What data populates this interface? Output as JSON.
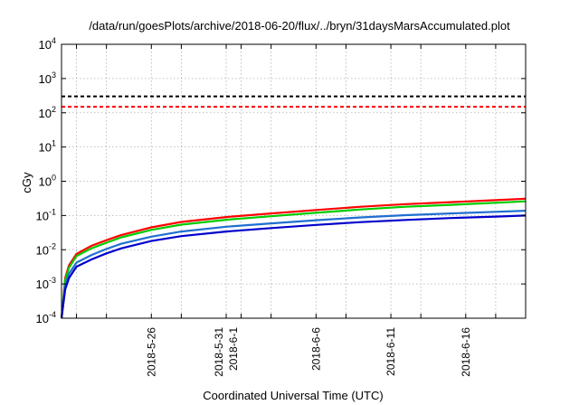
{
  "chart_data": {
    "type": "line",
    "title": "/data/run/goesPlots/archive/2018-06-20/flux/../bryn/31daysMarsAccumulated.plot",
    "xlabel": "Coordinated Universal Time (UTC)",
    "ylabel": "cGy",
    "yscale": "log",
    "ylim": [
      0.0001,
      10000
    ],
    "xlim": [
      "2018-05-20T00:00",
      "2018-06-20T00:00"
    ],
    "grid": true,
    "legend": "none",
    "y_ticks": [
      {
        "value": 0.0001,
        "base": "10",
        "exp": "-4"
      },
      {
        "value": 0.001,
        "base": "10",
        "exp": "-3"
      },
      {
        "value": 0.01,
        "base": "10",
        "exp": "-2"
      },
      {
        "value": 0.1,
        "base": "10",
        "exp": "-1"
      },
      {
        "value": 1,
        "base": "10",
        "exp": "0"
      },
      {
        "value": 10,
        "base": "10",
        "exp": "1"
      },
      {
        "value": 100,
        "base": "10",
        "exp": "2"
      },
      {
        "value": 1000,
        "base": "10",
        "exp": "3"
      },
      {
        "value": 10000,
        "base": "10",
        "exp": "4"
      }
    ],
    "x_ticks": [
      {
        "value": "2018-05-26",
        "lines": [
          "2018-5-26"
        ]
      },
      {
        "value": "2018-05-31",
        "lines": [
          "2018-5-31",
          "2018-6-1"
        ]
      },
      {
        "value": "2018-06-06",
        "lines": [
          "2018-6-6"
        ]
      },
      {
        "value": "2018-06-11",
        "lines": [
          "2018-6-11"
        ]
      },
      {
        "value": "2018-06-16",
        "lines": [
          "2018-6-16"
        ]
      }
    ],
    "x_grid": [
      "2018-05-21",
      "2018-05-23",
      "2018-05-26",
      "2018-05-28",
      "2018-05-31",
      "2018-06-01",
      "2018-06-03",
      "2018-06-06",
      "2018-06-08",
      "2018-06-11",
      "2018-06-13",
      "2018-06-16",
      "2018-06-18"
    ],
    "hlines": [
      {
        "value": 300,
        "color": "#000000",
        "style": "dashed"
      },
      {
        "value": 150,
        "color": "#ff0000",
        "style": "dashed"
      }
    ],
    "x": [
      "2018-05-20T00:00",
      "2018-05-20T06:00",
      "2018-05-20T12:00",
      "2018-05-21T00:00",
      "2018-05-22T00:00",
      "2018-05-23T00:00",
      "2018-05-24T00:00",
      "2018-05-26T00:00",
      "2018-05-28T00:00",
      "2018-05-31T00:00",
      "2018-06-03T00:00",
      "2018-06-06T00:00",
      "2018-06-09T00:00",
      "2018-06-12T00:00",
      "2018-06-15T00:00",
      "2018-06-18T00:00",
      "2018-06-20T00:00"
    ],
    "series": [
      {
        "color": "#ff0000",
        "values": [
          0.0001,
          0.0015,
          0.0035,
          0.0075,
          0.013,
          0.019,
          0.027,
          0.045,
          0.065,
          0.09,
          0.115,
          0.145,
          0.18,
          0.215,
          0.245,
          0.28,
          0.31
        ]
      },
      {
        "color": "#00cc00",
        "values": [
          0.0001,
          0.0013,
          0.003,
          0.0065,
          0.011,
          0.016,
          0.023,
          0.038,
          0.054,
          0.075,
          0.095,
          0.12,
          0.15,
          0.18,
          0.205,
          0.235,
          0.26
        ]
      },
      {
        "color": "#1f6fd0",
        "values": [
          0.0001,
          0.0009,
          0.002,
          0.0042,
          0.007,
          0.0105,
          0.015,
          0.024,
          0.034,
          0.047,
          0.059,
          0.073,
          0.088,
          0.102,
          0.115,
          0.128,
          0.138
        ]
      },
      {
        "color": "#0000cc",
        "values": [
          0.0001,
          0.0007,
          0.0015,
          0.0032,
          0.0052,
          0.0078,
          0.011,
          0.018,
          0.025,
          0.034,
          0.043,
          0.053,
          0.064,
          0.074,
          0.084,
          0.093,
          0.1
        ]
      }
    ]
  }
}
